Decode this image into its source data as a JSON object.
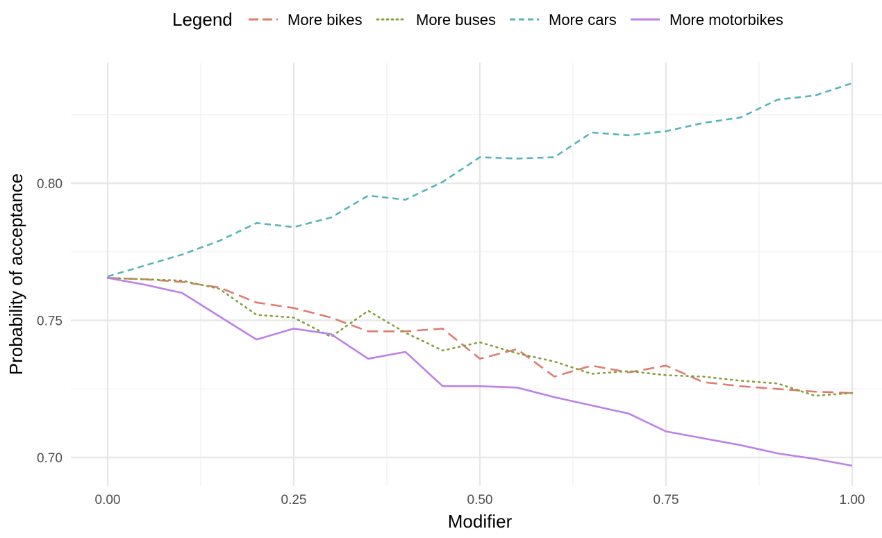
{
  "chart_data": {
    "type": "line",
    "title": "",
    "xlabel": "Modifier",
    "ylabel": "Probability of acceptance",
    "xlim": [
      0,
      1
    ],
    "ylim": [
      0.6965,
      0.8485
    ],
    "x_ticks": [
      0,
      0.25,
      0.5,
      0.75,
      1
    ],
    "x_tick_labels": [
      "0.00",
      "0.25",
      "0.50",
      "0.75",
      "1.00"
    ],
    "y_ticks": [
      0.7,
      0.75,
      0.8
    ],
    "y_tick_labels": [
      "0.70",
      "0.75",
      "0.80"
    ],
    "grid": true,
    "legend": {
      "title": "Legend",
      "position": "top"
    },
    "x": [
      0,
      0.05,
      0.1,
      0.15,
      0.2,
      0.25,
      0.3,
      0.35,
      0.4,
      0.45,
      0.5,
      0.55,
      0.6,
      0.65,
      0.7,
      0.75,
      0.8,
      0.85,
      0.9,
      0.95,
      1.0
    ],
    "series": [
      {
        "name": "More bikes",
        "color": "#E07B6F",
        "dash": "long-dash",
        "values": [
          0.7655,
          0.765,
          0.764,
          0.762,
          0.7565,
          0.7545,
          0.751,
          0.746,
          0.746,
          0.747,
          0.736,
          0.7395,
          0.7295,
          0.7335,
          0.731,
          0.7335,
          0.7275,
          0.726,
          0.725,
          0.724,
          0.7235
        ]
      },
      {
        "name": "More buses",
        "color": "#84A03C",
        "dash": "dotted",
        "values": [
          0.7655,
          0.765,
          0.7645,
          0.7615,
          0.752,
          0.751,
          0.744,
          0.7535,
          0.7455,
          0.739,
          0.742,
          0.738,
          0.735,
          0.7305,
          0.7315,
          0.73,
          0.7295,
          0.728,
          0.727,
          0.7225,
          0.7235
        ]
      },
      {
        "name": "More cars",
        "color": "#56B4BC",
        "dash": "short-dash",
        "values": [
          0.766,
          0.77,
          0.774,
          0.779,
          0.7855,
          0.784,
          0.7875,
          0.7955,
          0.794,
          0.8005,
          0.8095,
          0.809,
          0.8095,
          0.8185,
          0.8175,
          0.819,
          0.822,
          0.824,
          0.8305,
          0.832,
          0.8365
        ]
      },
      {
        "name": "More motorbikes",
        "color": "#BC80E8",
        "dash": "solid",
        "values": [
          0.7655,
          0.763,
          0.76,
          0.7515,
          0.743,
          0.747,
          0.745,
          0.736,
          0.7385,
          0.726,
          0.726,
          0.7255,
          0.722,
          0.719,
          0.716,
          0.7095,
          0.707,
          0.7045,
          0.7015,
          0.6995,
          0.697
        ]
      }
    ]
  }
}
